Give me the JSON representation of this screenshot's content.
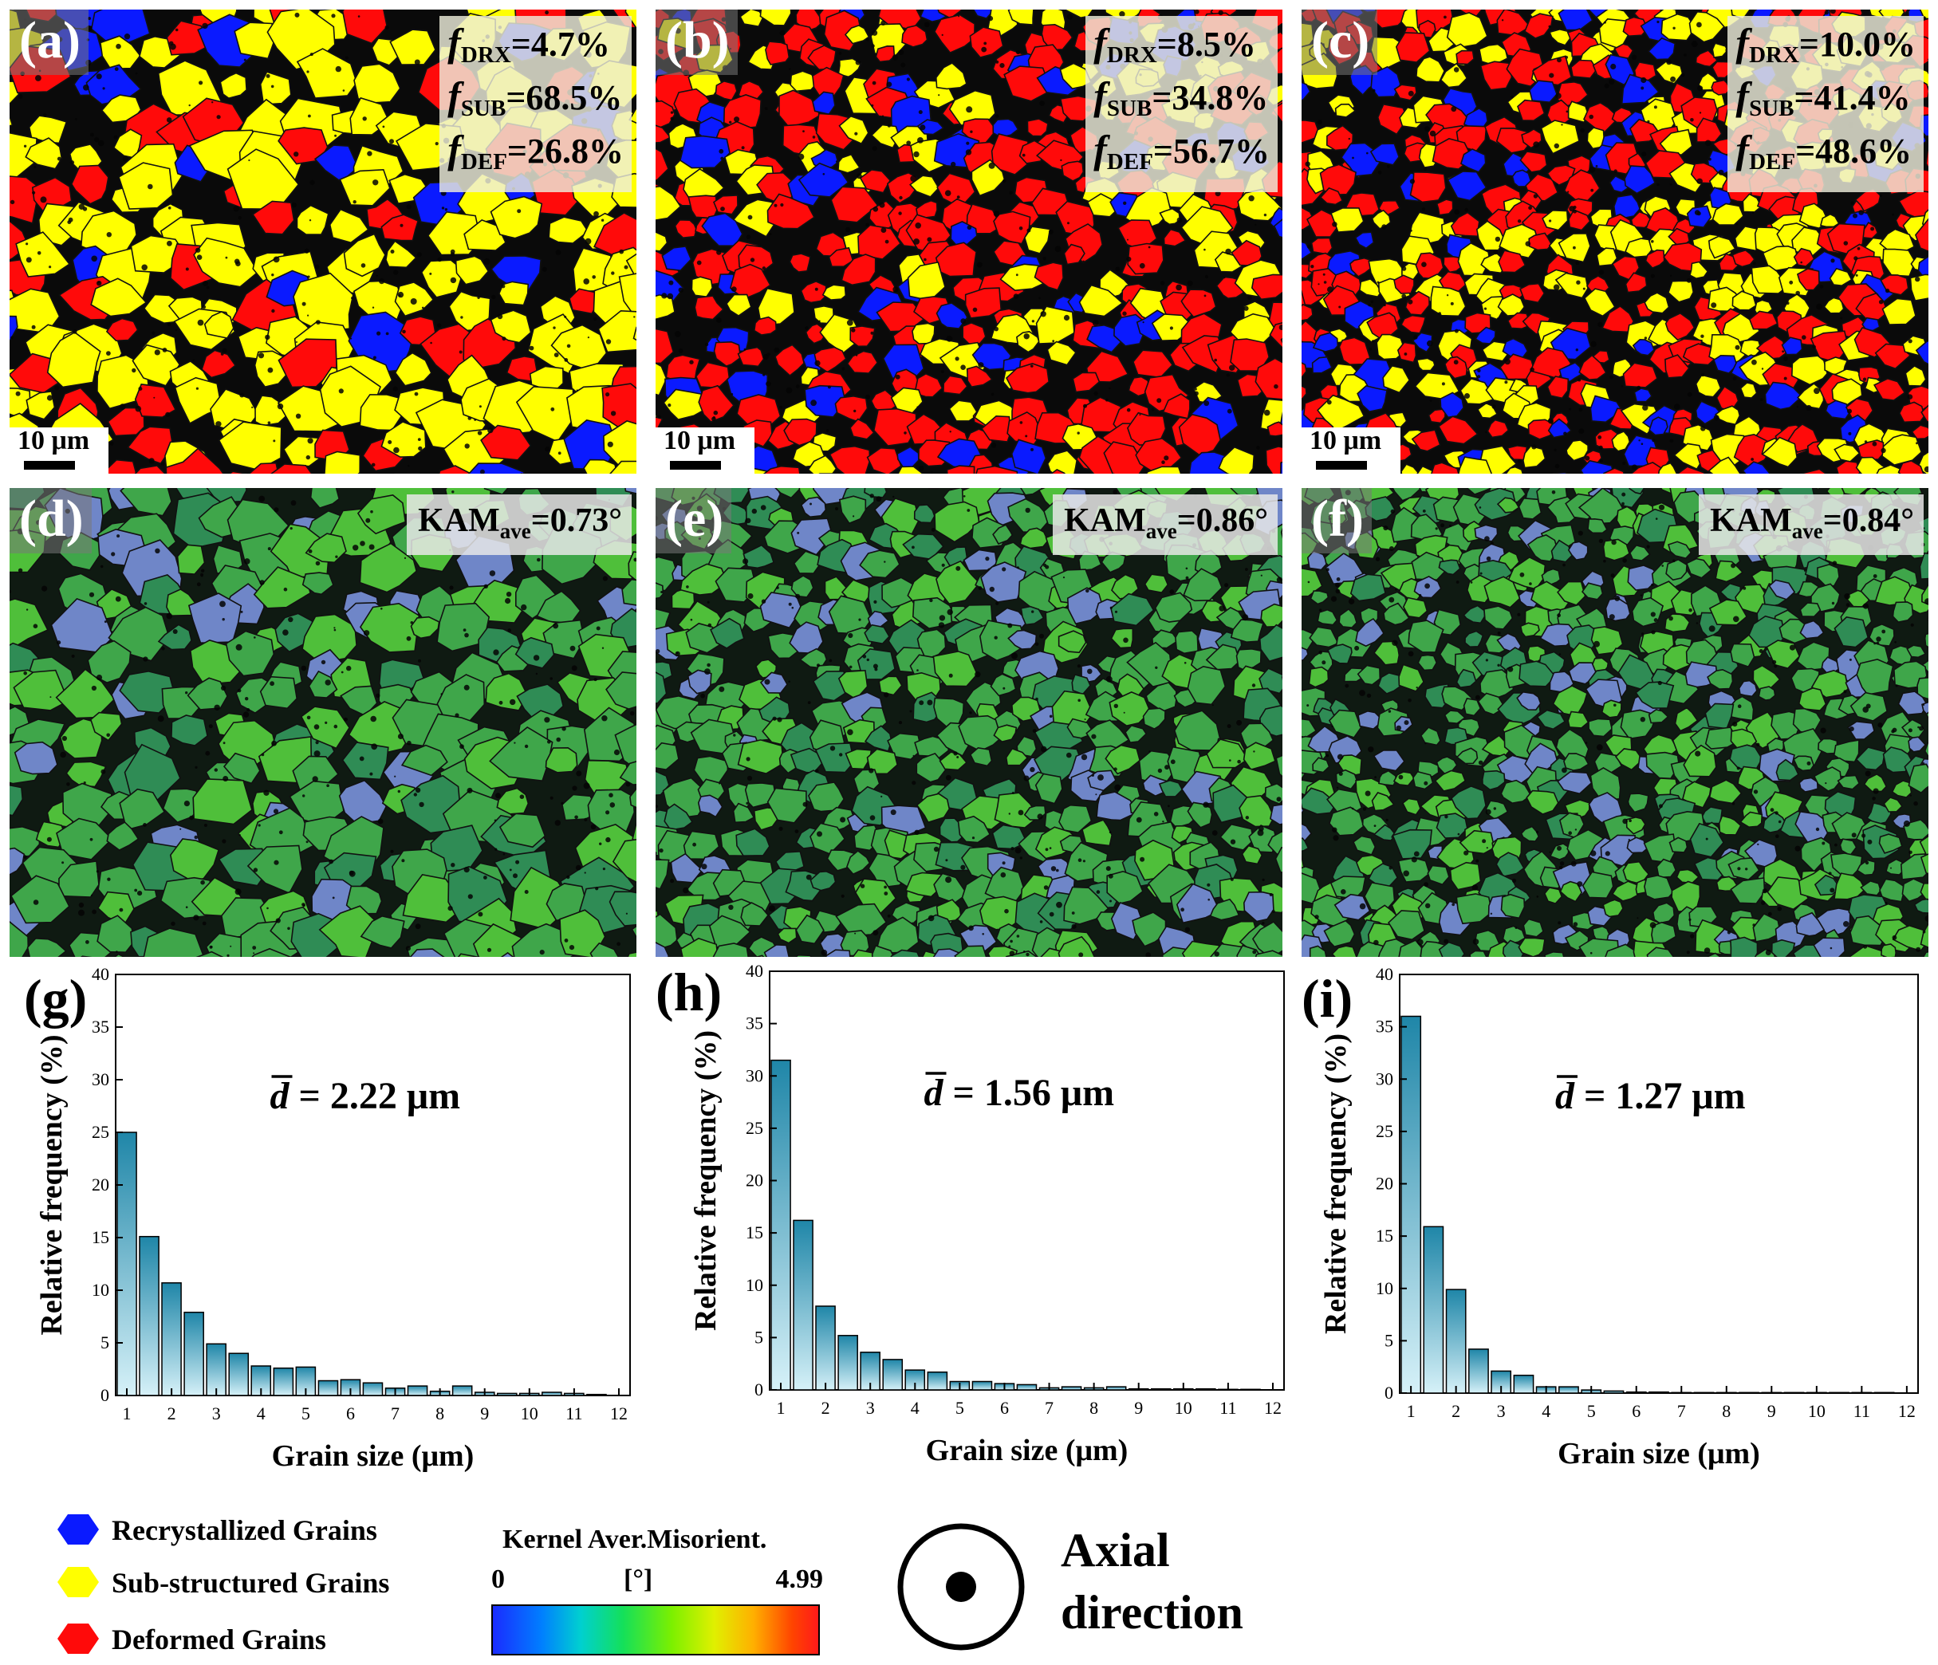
{
  "panels": {
    "a": {
      "label": "(a)",
      "f_drx": "=4.7%",
      "f_sub": "=68.5%",
      "f_def": "=26.8%",
      "scale": "10 μm"
    },
    "b": {
      "label": "(b)",
      "f_drx": "=8.5%",
      "f_sub": "=34.8%",
      "f_def": "=56.7%",
      "scale": "10 μm"
    },
    "c": {
      "label": "(c)",
      "f_drx": "=10.0%",
      "f_sub": "=41.4%",
      "f_def": "=48.6%",
      "scale": "10 μm"
    },
    "d": {
      "label": "(d)",
      "kam": "=0.73°"
    },
    "e": {
      "label": "(e)",
      "kam": "=0.86°"
    },
    "f": {
      "label": "(f)",
      "kam": "=0.84°"
    }
  },
  "symbols": {
    "f": "f",
    "drx": "DRX",
    "sub": "SUB",
    "def": "DEF",
    "kam": "KAM",
    "ave": "ave"
  },
  "legend": {
    "recrystallized": "Recrystallized Grains",
    "substructured": "Sub-structured Grains",
    "deformed": "Deformed Grains",
    "colors": {
      "recrystallized": "#0a1aff",
      "substructured": "#ffff00",
      "deformed": "#ff0a0a"
    }
  },
  "kam_legend": {
    "title": "Kernel Aver.Misorient.",
    "min": "0",
    "unit": "[°]",
    "max": "4.99"
  },
  "axial": {
    "line1": "Axial",
    "line2": "direction"
  },
  "chart_data": [
    {
      "type": "bar",
      "label": "(g)",
      "annotation": "d = 2.22 μm",
      "xlabel": "Grain size (μm)",
      "ylabel": "Relative frequency (%)",
      "xlim": [
        0.75,
        12.25
      ],
      "ylim": [
        0,
        40
      ],
      "xticks": [
        1,
        2,
        3,
        4,
        5,
        6,
        7,
        8,
        9,
        10,
        11,
        12
      ],
      "yticks": [
        0,
        5,
        10,
        15,
        20,
        25,
        30,
        35,
        40
      ],
      "x": [
        1,
        1.5,
        2,
        2.5,
        3,
        3.5,
        4,
        4.5,
        5,
        5.5,
        6,
        6.5,
        7,
        7.5,
        8,
        8.5,
        9,
        9.5,
        10,
        10.5,
        11,
        11.5
      ],
      "values": [
        25,
        15.1,
        10.7,
        7.9,
        4.9,
        4.0,
        2.8,
        2.6,
        2.7,
        1.4,
        1.5,
        1.2,
        0.7,
        0.9,
        0.4,
        0.9,
        0.3,
        0.2,
        0.2,
        0.3,
        0.2,
        0.1
      ]
    },
    {
      "type": "bar",
      "label": "(h)",
      "annotation": "d = 1.56 μm",
      "xlabel": "Grain size (μm)",
      "ylabel": "Relative frequency (%)",
      "xlim": [
        0.75,
        12.25
      ],
      "ylim": [
        0,
        40
      ],
      "xticks": [
        1,
        2,
        3,
        4,
        5,
        6,
        7,
        8,
        9,
        10,
        11,
        12
      ],
      "yticks": [
        0,
        5,
        10,
        15,
        20,
        25,
        30,
        35,
        40
      ],
      "x": [
        1,
        1.5,
        2,
        2.5,
        3,
        3.5,
        4,
        4.5,
        5,
        5.5,
        6,
        6.5,
        7,
        7.5,
        8,
        8.5,
        9,
        9.5,
        10,
        10.5,
        11,
        11.5
      ],
      "values": [
        31.5,
        16.2,
        8.0,
        5.2,
        3.6,
        2.9,
        1.9,
        1.7,
        0.8,
        0.8,
        0.6,
        0.5,
        0.2,
        0.3,
        0.2,
        0.3,
        0.1,
        0.1,
        0.1,
        0.1,
        0.05,
        0.05
      ]
    },
    {
      "type": "bar",
      "label": "(i)",
      "annotation": "d = 1.27 μm",
      "xlabel": "Grain size (μm)",
      "ylabel": "Relative frequency (%)",
      "xlim": [
        0.75,
        12.25
      ],
      "ylim": [
        0,
        40
      ],
      "xticks": [
        1,
        2,
        3,
        4,
        5,
        6,
        7,
        8,
        9,
        10,
        11,
        12
      ],
      "yticks": [
        0,
        5,
        10,
        15,
        20,
        25,
        30,
        35,
        40
      ],
      "x": [
        1,
        1.5,
        2,
        2.5,
        3,
        3.5,
        4,
        4.5,
        5,
        5.5,
        6,
        6.5,
        7,
        7.5,
        8,
        8.5,
        9,
        9.5,
        10,
        10.5,
        11,
        11.5
      ],
      "values": [
        36,
        15.9,
        9.9,
        4.2,
        2.1,
        1.7,
        0.6,
        0.6,
        0.3,
        0.2,
        0.1,
        0.1,
        0.05,
        0.05,
        0.05,
        0.05,
        0.05,
        0.05,
        0.05,
        0.05,
        0.05,
        0.05
      ]
    }
  ]
}
